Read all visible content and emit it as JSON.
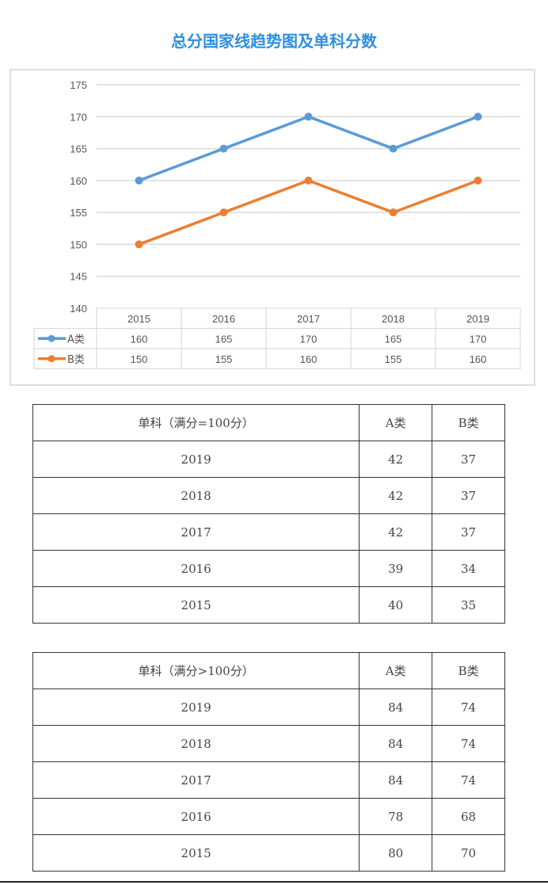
{
  "title": "总分国家线趋势图及单科分数",
  "chart_data": {
    "type": "line",
    "title": "总分国家线趋势图及单科分数",
    "categories": [
      "2015",
      "2016",
      "2017",
      "2018",
      "2019"
    ],
    "series": [
      {
        "name": "A类",
        "color": "#5b9bd5",
        "values": [
          160,
          165,
          170,
          165,
          170
        ]
      },
      {
        "name": "B类",
        "color": "#ed7d31",
        "values": [
          150,
          155,
          160,
          155,
          160
        ]
      }
    ],
    "ylim": [
      140,
      175
    ],
    "yticks": [
      140,
      145,
      150,
      155,
      160,
      165,
      170,
      175
    ],
    "grid": true,
    "legend": "data-table"
  },
  "tables": [
    {
      "header": [
        "单科（满分=100分）",
        "A类",
        "B类"
      ],
      "rows": [
        [
          "2019",
          "42",
          "37"
        ],
        [
          "2018",
          "42",
          "37"
        ],
        [
          "2017",
          "42",
          "37"
        ],
        [
          "2016",
          "39",
          "34"
        ],
        [
          "2015",
          "40",
          "35"
        ]
      ]
    },
    {
      "header": [
        "单科（满分>100分）",
        "A类",
        "B类"
      ],
      "rows": [
        [
          "2019",
          "84",
          "74"
        ],
        [
          "2018",
          "84",
          "74"
        ],
        [
          "2017",
          "84",
          "74"
        ],
        [
          "2016",
          "78",
          "68"
        ],
        [
          "2015",
          "80",
          "70"
        ]
      ]
    }
  ]
}
